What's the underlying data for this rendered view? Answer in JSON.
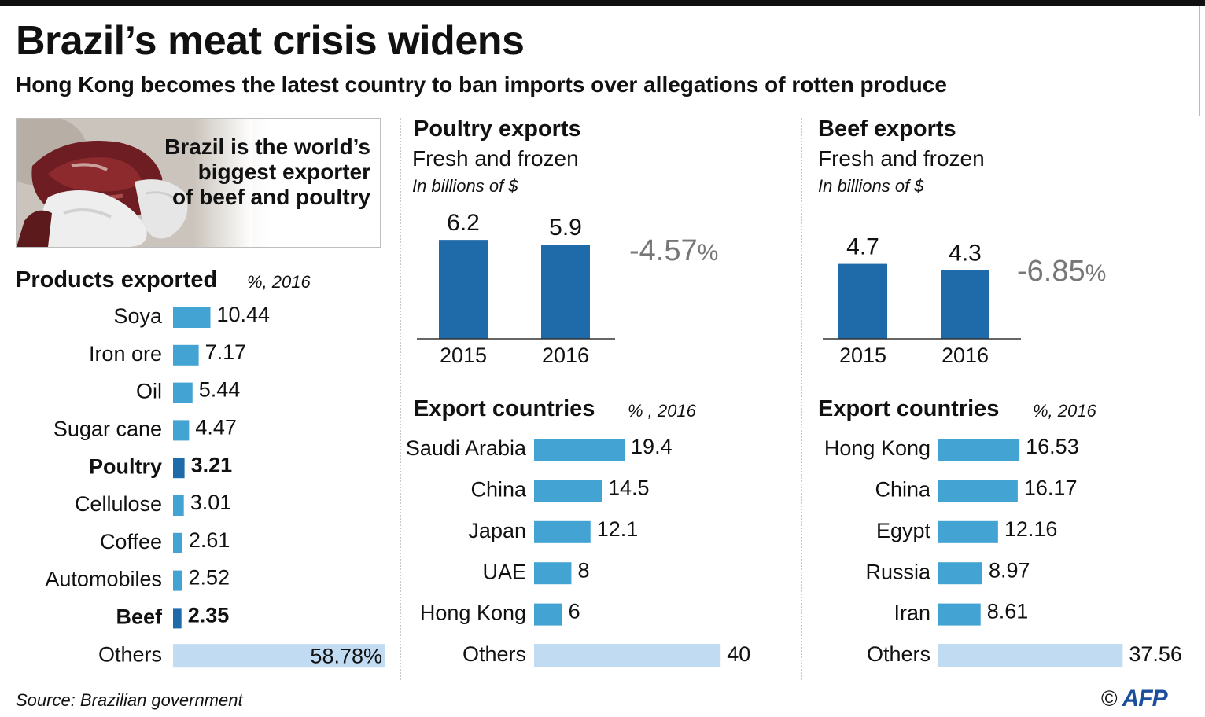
{
  "header": {
    "title": "Brazil’s meat crisis widens",
    "subtitle": "Hong Kong becomes the latest country to ban imports over allegations of rotten produce"
  },
  "photo_box": {
    "lines": [
      "Brazil is the world’s",
      "biggest exporter",
      "of beef and poultry"
    ],
    "image_icon": "meat-in-gloved-hands-photo"
  },
  "products": {
    "title": "Products exported",
    "unit": "%, 2016"
  },
  "poultry": {
    "title": "Poultry exports",
    "sub": "Fresh and frozen",
    "unit": "In billions of $",
    "change_value": "-4.57",
    "change_unit": "%"
  },
  "beef": {
    "title": "Beef exports",
    "sub": "Fresh and frozen",
    "unit": "In billions of $",
    "change_value": "-6.85",
    "change_unit": "%"
  },
  "poultry_countries": {
    "title": "Export countries",
    "unit": "% , 2016"
  },
  "beef_countries": {
    "title": "Export countries",
    "unit": "%, 2016"
  },
  "footer": {
    "source": "Source: Brazilian government",
    "copyright": "©",
    "logo": "AFP"
  },
  "colors": {
    "bar": "#43a3d2",
    "bar_highlight": "#1f6aa8",
    "bar_others": "#c0dbf2",
    "column": "#1f6aa8",
    "change_text": "#777777",
    "text": "#111111"
  },
  "chart_data": [
    {
      "id": "products",
      "type": "bar",
      "orientation": "horizontal",
      "title": "Products exported",
      "unit": "%, 2016",
      "categories": [
        "Soya",
        "Iron ore",
        "Oil",
        "Sugar cane",
        "Poultry",
        "Cellulose",
        "Coffee",
        "Automobiles",
        "Beef",
        "Others"
      ],
      "values": [
        10.44,
        7.17,
        5.44,
        4.47,
        3.21,
        3.01,
        2.61,
        2.52,
        2.35,
        58.78
      ],
      "labels": [
        "10.44",
        "7.17",
        "5.44",
        "4.47",
        "3.21",
        "3.01",
        "2.61",
        "2.52",
        "2.35",
        "58.78%"
      ],
      "highlight": [
        "Poultry",
        "Beef"
      ],
      "others": "Others"
    },
    {
      "id": "poultry_exports",
      "type": "bar",
      "orientation": "vertical",
      "title": "Poultry exports",
      "unit": "In billions of $",
      "categories": [
        "2015",
        "2016"
      ],
      "values": [
        6.2,
        5.9
      ],
      "labels": [
        "6.2",
        "5.9"
      ]
    },
    {
      "id": "beef_exports",
      "type": "bar",
      "orientation": "vertical",
      "title": "Beef exports",
      "unit": "In billions of $",
      "categories": [
        "2015",
        "2016"
      ],
      "values": [
        4.7,
        4.3
      ],
      "labels": [
        "4.7",
        "4.3"
      ]
    },
    {
      "id": "poultry_countries",
      "type": "bar",
      "orientation": "horizontal",
      "title": "Export countries",
      "unit": "% , 2016",
      "categories": [
        "Saudi Arabia",
        "China",
        "Japan",
        "UAE",
        "Hong Kong",
        "Others"
      ],
      "values": [
        19.4,
        14.5,
        12.1,
        8,
        6,
        40
      ],
      "labels": [
        "19.4",
        "14.5",
        "12.1",
        "8",
        "6",
        "40"
      ],
      "others": "Others"
    },
    {
      "id": "beef_countries",
      "type": "bar",
      "orientation": "horizontal",
      "title": "Export countries",
      "unit": "%, 2016",
      "categories": [
        "Hong Kong",
        "China",
        "Egypt",
        "Russia",
        "Iran",
        "Others"
      ],
      "values": [
        16.53,
        16.17,
        12.16,
        8.97,
        8.61,
        37.56
      ],
      "labels": [
        "16.53",
        "16.17",
        "12.16",
        "8.97",
        "8.61",
        "37.56"
      ],
      "others": "Others"
    }
  ]
}
